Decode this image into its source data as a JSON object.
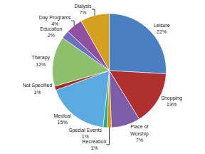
{
  "chart_data": {
    "type": "pie",
    "categories": [
      "Leisure",
      "Shopping",
      "Place of\nWorship",
      "Recreation",
      "Special Events",
      "Medical",
      "Not Specified",
      "Therapy",
      "Education",
      "Day Programs",
      "Dialysis"
    ],
    "values": [
      22,
      13,
      7,
      1,
      1,
      15,
      1,
      12,
      2,
      4,
      7
    ],
    "value_labels": [
      "22%",
      "13%",
      "7%",
      "1%",
      "1%",
      "15%",
      "1%",
      "12%",
      "2%",
      "4%",
      "7%"
    ],
    "colors": [
      "#4a7fc1",
      "#b03030",
      "#7b5ea7",
      "#d4950a",
      "#2aaa8a",
      "#5baae0",
      "#a03030",
      "#8ec06c",
      "#7070c0",
      "#9050a0",
      "#d4a020"
    ],
    "data_labels": true
  }
}
